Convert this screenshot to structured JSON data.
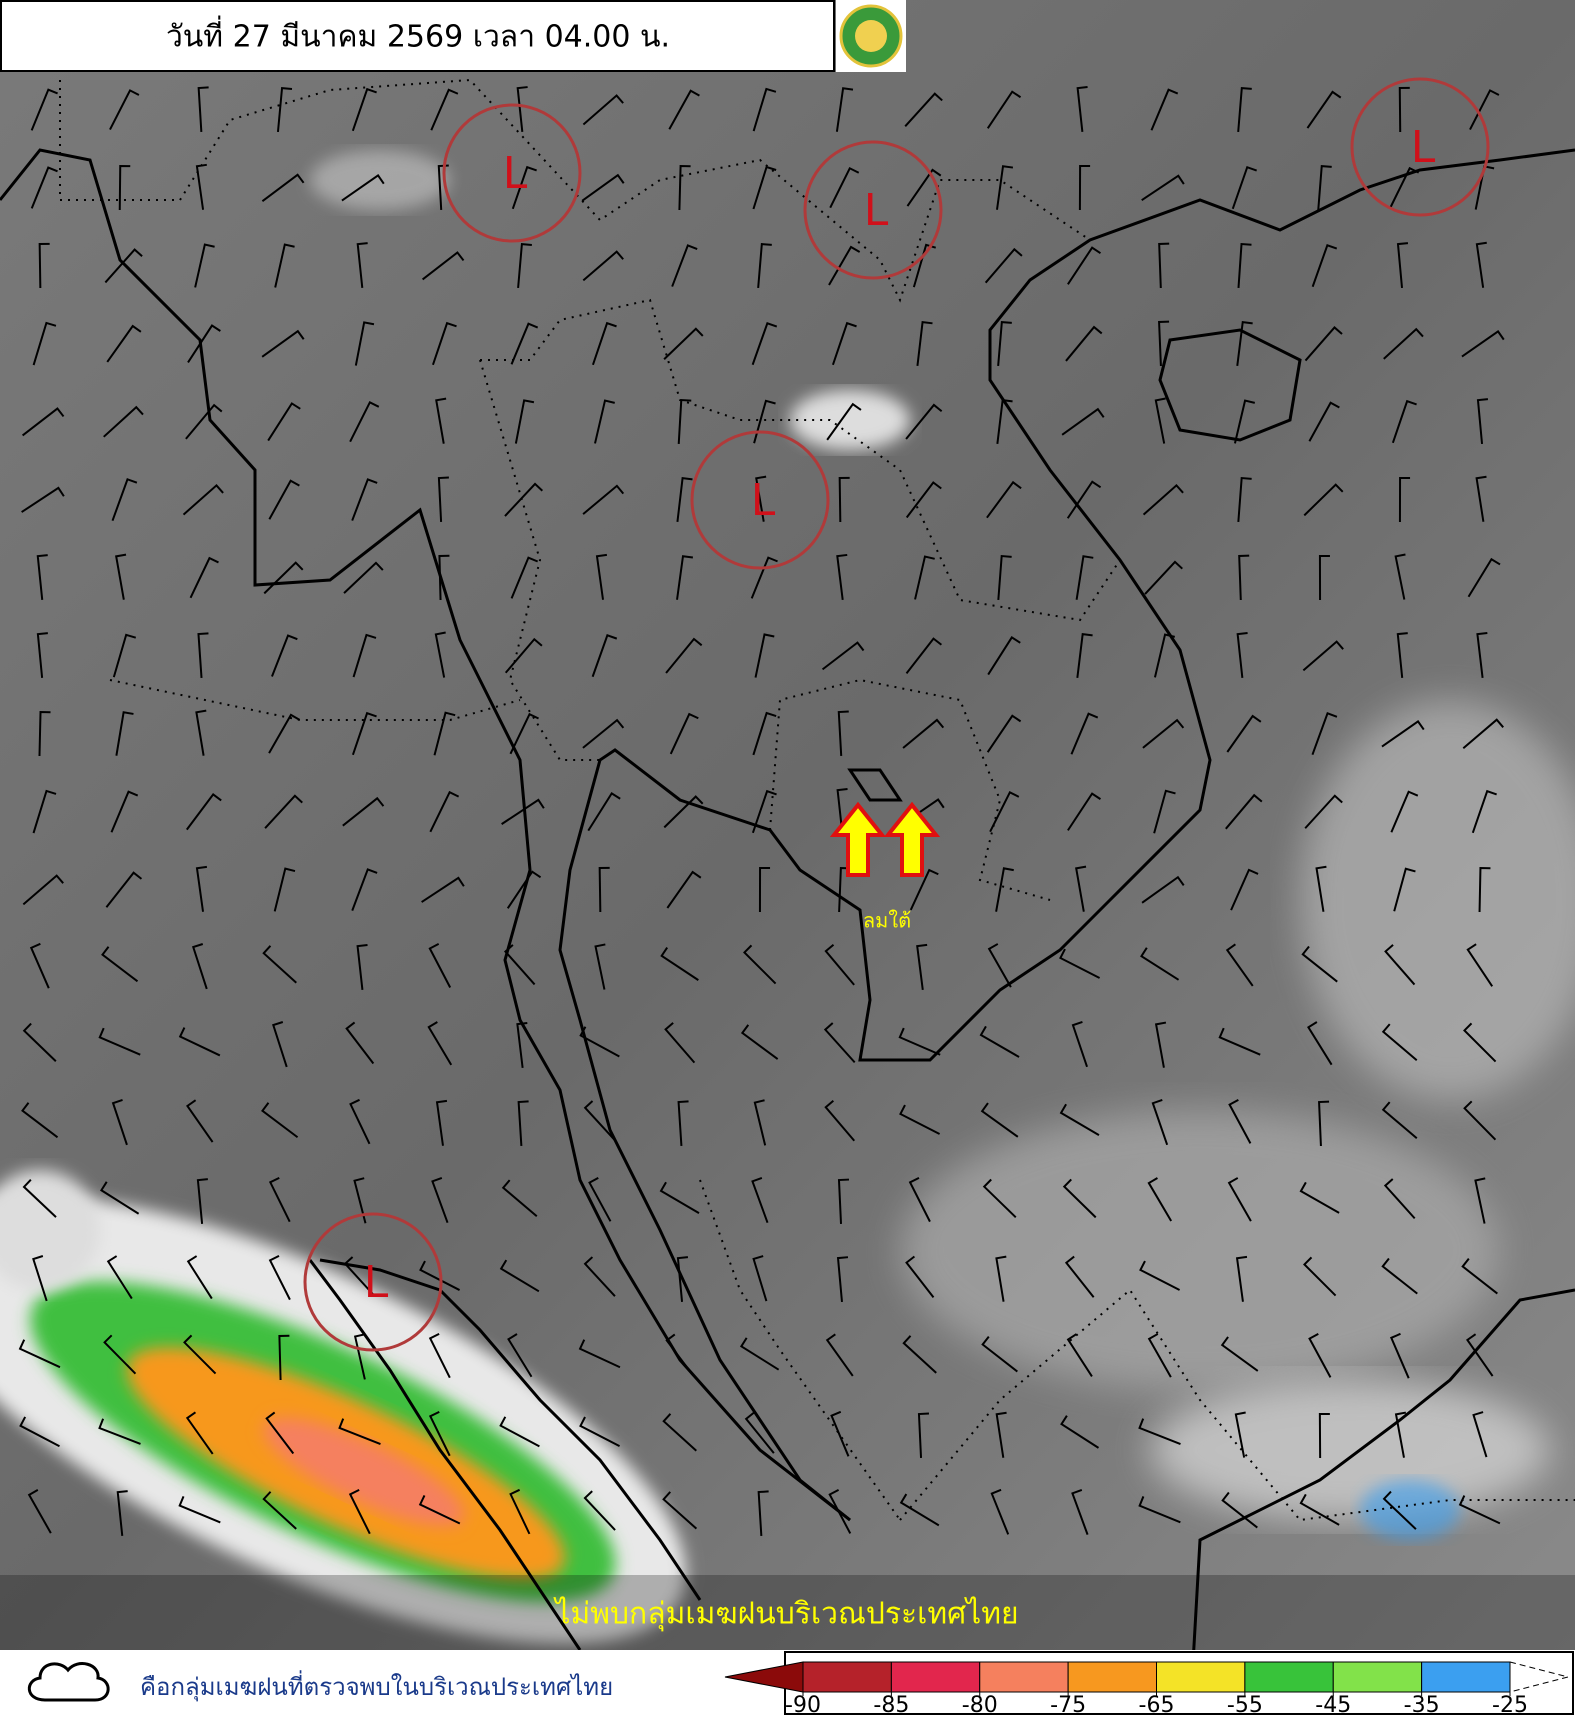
{
  "header": {
    "date_text": "วันที่ 27 มีนาคม 2569 เวลา 04.00 น."
  },
  "map": {
    "low_pressure_labels": [
      "L",
      "L",
      "L",
      "L",
      "L"
    ],
    "wind_label": "ลมใต้",
    "status_message": "ไม่พบกลุ่มเมฆฝนบริเวณประเทศไทย"
  },
  "legend": {
    "cloud_symbol_text": "คือกลุ่มเมฆฝนที่ตรวจพบในบริเวณประเทศไทย",
    "scale": {
      "ticks": [
        -90,
        -85,
        -80,
        -75,
        -65,
        -55,
        -45,
        -35,
        -25
      ],
      "below_color": "#8b0a0a",
      "colors": [
        "#b5222a",
        "#e2264d",
        "#f5805e",
        "#f7981f",
        "#f4e327",
        "#38c33a",
        "#82e24a",
        "#3b9ff0"
      ]
    }
  }
}
